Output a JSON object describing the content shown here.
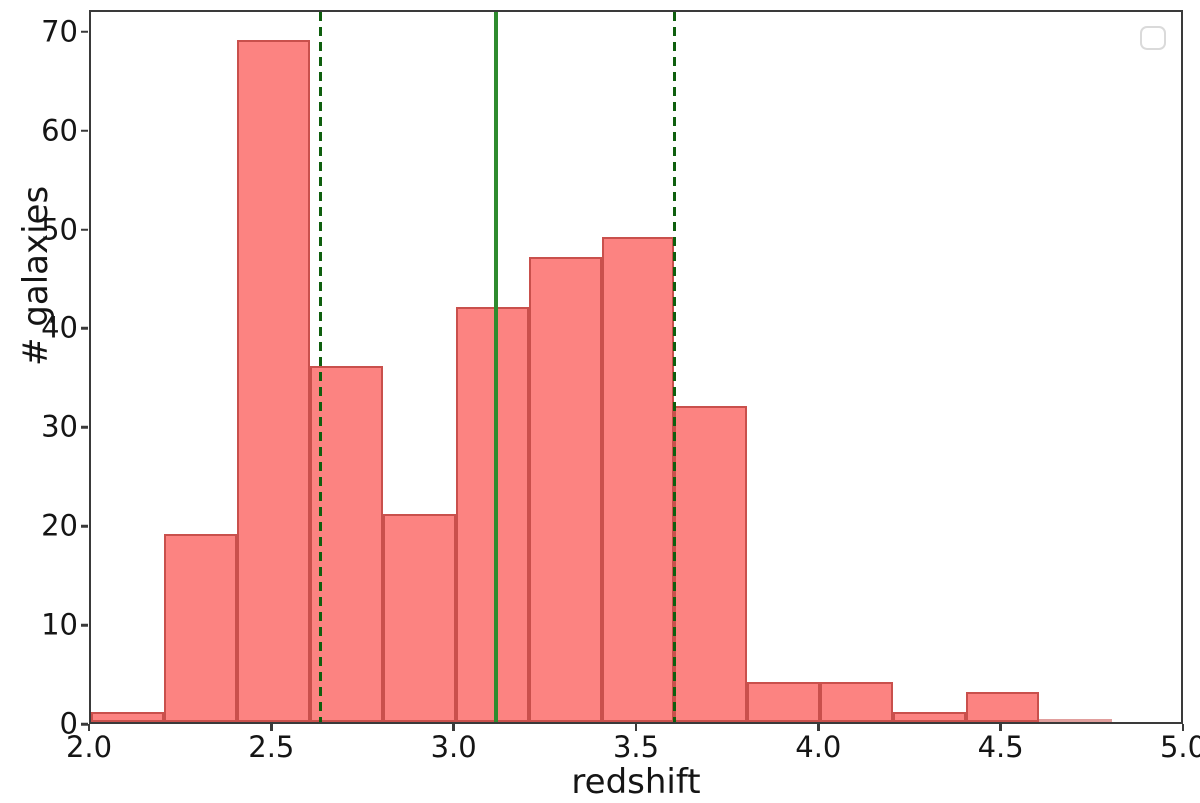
{
  "chart_data": {
    "type": "bar",
    "subtype": "histogram",
    "title": "",
    "xlabel": "redshift",
    "ylabel": "# galaxies",
    "xlim": [
      2.0,
      5.0
    ],
    "ylim": [
      0,
      72.2
    ],
    "grid": false,
    "bin_edges": [
      2.0,
      2.2,
      2.4,
      2.6,
      2.8,
      3.0,
      3.2,
      3.4,
      3.6,
      3.8,
      4.0,
      4.2,
      4.4,
      4.6,
      4.8
    ],
    "counts": [
      1,
      19,
      69,
      36,
      21,
      42,
      47,
      49,
      32,
      4,
      4,
      1,
      3,
      0
    ],
    "x_tick_values": [
      2.0,
      2.5,
      3.0,
      3.5,
      4.0,
      4.5,
      5.0
    ],
    "x_tick_labels": [
      "2.0",
      "2.5",
      "3.0",
      "3.5",
      "4.0",
      "4.5",
      "5.0"
    ],
    "y_tick_values": [
      0,
      10,
      20,
      30,
      40,
      50,
      60,
      70
    ],
    "y_tick_labels": [
      "0",
      "10",
      "20",
      "30",
      "40",
      "50",
      "60",
      "70"
    ],
    "vlines": [
      {
        "x": 2.63,
        "style": "dashed",
        "color": "#0e5f0e",
        "name": "lower-bound-line"
      },
      {
        "x": 3.11,
        "style": "solid",
        "color": "#2e8b2e",
        "name": "median-line"
      },
      {
        "x": 3.6,
        "style": "dashed",
        "color": "#0e5f0e",
        "name": "upper-bound-line"
      }
    ],
    "legend": {
      "visible": true,
      "position": "upper right",
      "entries": []
    },
    "colors": {
      "bar_fill": "#fc8381",
      "bar_edge": "#c9504c",
      "spine": "#3a3a3a",
      "background": "#ffffff",
      "text": "#151515"
    }
  }
}
